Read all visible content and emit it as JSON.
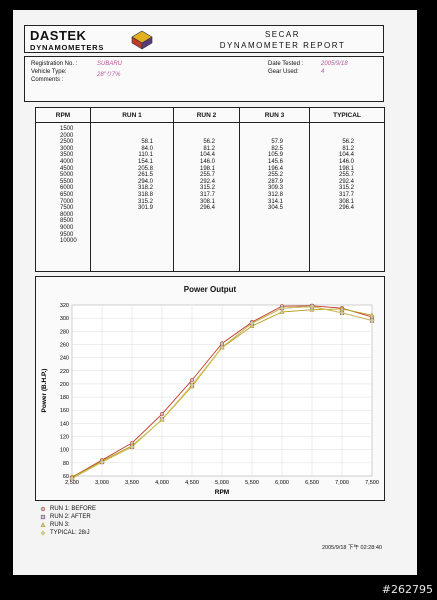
{
  "header": {
    "brand_name": "DASTEK",
    "brand_sub": "DYNAMOMETERS",
    "title_line1": "SECAR",
    "title_line2": "DYNAMOMETER REPORT"
  },
  "info": {
    "registration_label": "Registration No. :",
    "registration_value": "SUBARU",
    "vehicle_label": "Vehicle Type:",
    "vehicle_value": "28\"り7%",
    "comments_label": "Comments :",
    "date_label": "Date Tested :",
    "date_value": "2005/9/18",
    "gear_label": "Gear Used:",
    "gear_value": "4"
  },
  "table": {
    "headers": [
      "RPM",
      "RUN 1",
      "RUN 2",
      "RUN 3",
      "TYPICAL"
    ],
    "rpm": [
      "1500",
      "2000",
      "2500",
      "3000",
      "3500",
      "4000",
      "4500",
      "5000",
      "5500",
      "6000",
      "6500",
      "7000",
      "7500",
      "8000",
      "8500",
      "9000",
      "9500",
      "10000"
    ],
    "run1": [
      "",
      "",
      "58.1",
      "84.0",
      "110.1",
      "154.1",
      "205.8",
      "261.5",
      "294.0",
      "318.2",
      "318.8",
      "315.2",
      "301.9",
      "",
      "",
      "",
      "",
      ""
    ],
    "run2": [
      "",
      "",
      "56.2",
      "81.2",
      "104.4",
      "146.0",
      "198.1",
      "255.7",
      "292.4",
      "315.2",
      "317.7",
      "308.1",
      "296.4",
      "",
      "",
      "",
      "",
      ""
    ],
    "run3": [
      "",
      "",
      "57.9",
      "82.5",
      "105.9",
      "145.6",
      "196.4",
      "255.2",
      "287.9",
      "309.3",
      "312.8",
      "314.1",
      "304.5",
      "",
      "",
      "",
      "",
      ""
    ],
    "typical": [
      "",
      "",
      "56.2",
      "81.2",
      "104.4",
      "146.0",
      "198.1",
      "255.7",
      "292.4",
      "315.2",
      "317.7",
      "308.1",
      "296.4",
      "",
      "",
      "",
      "",
      ""
    ]
  },
  "chart_data": {
    "type": "line",
    "title": "Power Output",
    "xlabel": "RPM",
    "ylabel": "Power (B.H.P.)",
    "x_ticks": [
      "2,500",
      "3,000",
      "3,500",
      "4,000",
      "4,500",
      "5,000",
      "5,500",
      "6,000",
      "6,500",
      "7,000",
      "7,500"
    ],
    "y_ticks": [
      "60",
      "80",
      "100",
      "120",
      "140",
      "160",
      "180",
      "200",
      "220",
      "240",
      "260",
      "280",
      "300",
      "320"
    ],
    "xlim": [
      2500,
      7500
    ],
    "ylim": [
      60,
      320
    ],
    "grid": true,
    "x": [
      2500,
      3000,
      3500,
      4000,
      4500,
      5000,
      5500,
      6000,
      6500,
      7000,
      7500
    ],
    "series": [
      {
        "name": "RUN 1: BEFORE",
        "color": "#c0392b",
        "values": [
          58.1,
          84.0,
          110.1,
          154.1,
          205.8,
          261.5,
          294.0,
          318.2,
          318.8,
          315.2,
          301.9
        ]
      },
      {
        "name": "RUN 2: AFTER",
        "color": "#7a4a8a",
        "values": [
          56.2,
          81.2,
          104.4,
          146.0,
          198.1,
          255.7,
          292.4,
          315.2,
          317.7,
          308.1,
          296.4
        ]
      },
      {
        "name": "RUN 3:",
        "color": "#b8a020",
        "values": [
          57.9,
          82.5,
          105.9,
          145.6,
          196.4,
          255.2,
          287.9,
          309.3,
          312.8,
          314.1,
          304.5
        ]
      },
      {
        "name": "TYPICAL: 28ıJ",
        "color": "#d4c84a",
        "values": [
          56.2,
          81.2,
          104.4,
          146.0,
          198.1,
          255.7,
          292.4,
          315.2,
          317.7,
          308.1,
          296.4
        ]
      }
    ]
  },
  "footer": {
    "timestamp": "2005/9/18 下午 02:28:40",
    "watermark": "#262795"
  }
}
